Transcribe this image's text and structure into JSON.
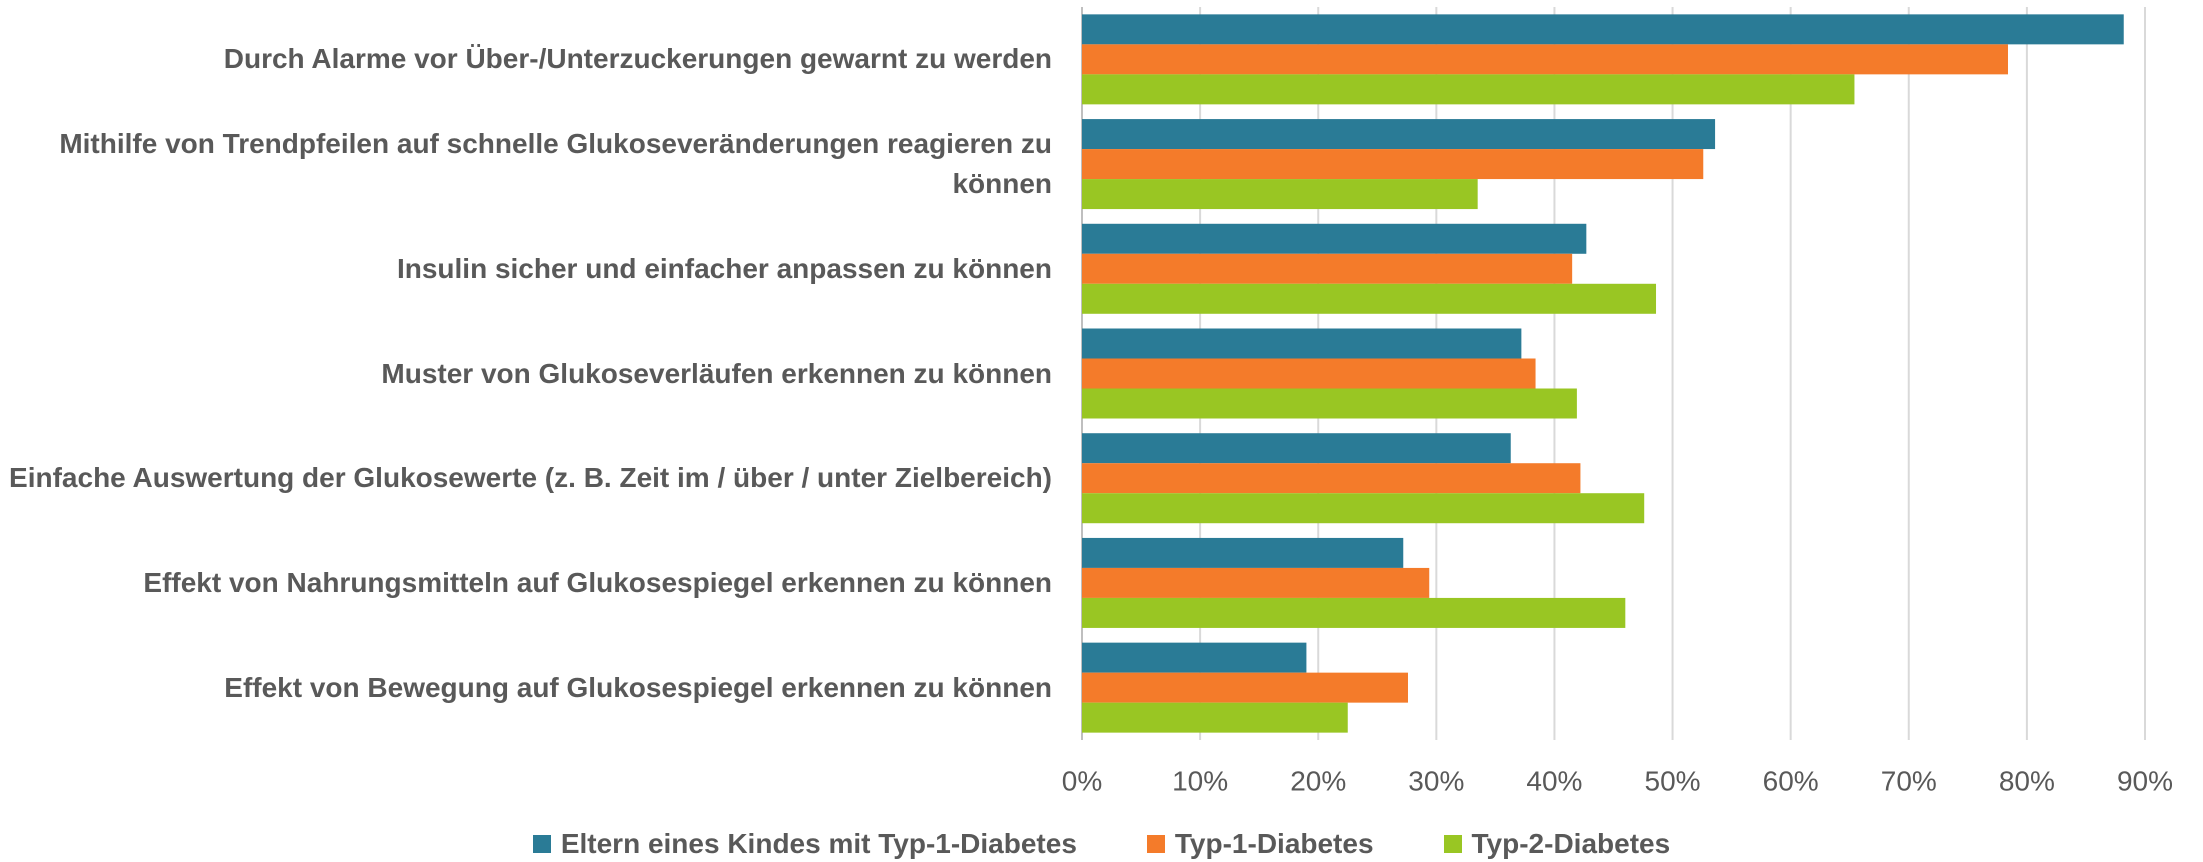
{
  "chart_data": {
    "type": "bar",
    "orientation": "horizontal",
    "categories": [
      "Durch Alarme vor Über-/Unterzuckerungen gewarnt zu werden",
      "Mithilfe von Trendpfeilen auf schnelle Glukoseveränderungen reagieren zu können",
      "Insulin sicher und einfacher anpassen zu können",
      "Muster von Glukoseverläufen erkennen zu können",
      "Einfache Auswertung der Glukosewerte (z. B. Zeit im / über / unter Zielbereich)",
      "Effekt von Nahrungsmitteln auf Glukosespiegel erkennen zu können",
      "Effekt von Bewegung auf Glukosespiegel erkennen zu können"
    ],
    "series": [
      {
        "name": "Eltern eines Kindes mit Typ-1-Diabetes",
        "color": "#2a7b96",
        "values": [
          88.2,
          53.6,
          42.7,
          37.2,
          36.3,
          27.2,
          19.0
        ]
      },
      {
        "name": "Typ-1-Diabetes",
        "color": "#f47b2a",
        "values": [
          78.4,
          52.6,
          41.5,
          38.4,
          42.2,
          29.4,
          27.6
        ]
      },
      {
        "name": "Typ-2-Diabetes",
        "color": "#99c623",
        "values": [
          65.4,
          33.5,
          48.6,
          41.9,
          47.6,
          46.0,
          22.5
        ]
      }
    ],
    "xlim": [
      0,
      90
    ],
    "xticks": [
      {
        "value": 0,
        "label": "0%"
      },
      {
        "value": 10,
        "label": "10%"
      },
      {
        "value": 20,
        "label": "20%"
      },
      {
        "value": 30,
        "label": "30%"
      },
      {
        "value": 40,
        "label": "40%"
      },
      {
        "value": 50,
        "label": "50%"
      },
      {
        "value": 60,
        "label": "60%"
      },
      {
        "value": 70,
        "label": "70%"
      },
      {
        "value": 80,
        "label": "80%"
      },
      {
        "value": 90,
        "label": "90%"
      }
    ],
    "grid": true,
    "legend": "bottom"
  }
}
